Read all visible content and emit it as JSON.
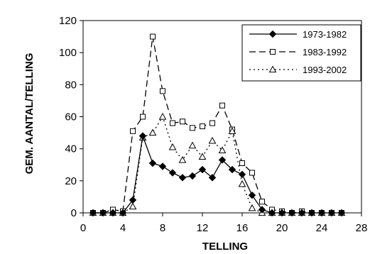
{
  "chart_data": {
    "type": "line",
    "title": "",
    "xlabel": "TELLING",
    "ylabel": "GEM. AANTAL/TELLING",
    "xlim": [
      0,
      28
    ],
    "ylim": [
      0,
      120
    ],
    "x_ticks": [
      0,
      4,
      8,
      12,
      16,
      20,
      24,
      28
    ],
    "y_ticks": [
      0,
      20,
      40,
      60,
      80,
      100,
      120
    ],
    "x_tick_labels": [
      "0",
      "4",
      "8",
      "12",
      "16",
      "20",
      "24",
      "28"
    ],
    "y_tick_labels": [
      "0",
      "20",
      "40",
      "60",
      "80",
      "100",
      "120"
    ],
    "grid": false,
    "legend_position": "top-right",
    "x": [
      1,
      2,
      3,
      4,
      5,
      6,
      7,
      8,
      9,
      10,
      11,
      12,
      13,
      14,
      15,
      16,
      17,
      18,
      19,
      20,
      21,
      22,
      23,
      24,
      25,
      26
    ],
    "series": [
      {
        "name": "1973-1982",
        "line_style": "solid",
        "marker": "filled-diamond",
        "values": [
          0,
          0,
          0,
          0,
          8,
          48,
          31,
          29,
          25,
          22,
          23,
          27,
          22,
          33,
          27,
          24,
          11,
          2,
          0,
          0,
          0,
          0,
          0,
          0,
          0,
          0
        ]
      },
      {
        "name": "1983-1992",
        "line_style": "dashed",
        "marker": "open-square",
        "values": [
          0,
          0,
          2,
          1,
          51,
          60,
          110,
          76,
          56,
          57,
          53,
          54,
          56,
          67,
          52,
          31,
          25,
          7,
          2,
          1,
          0,
          1,
          0,
          0,
          0,
          0
        ]
      },
      {
        "name": "1993-2002",
        "line_style": "dotted",
        "marker": "open-triangle",
        "values": [
          0,
          0,
          0,
          0,
          4,
          47,
          50,
          60,
          41,
          33,
          42,
          35,
          45,
          39,
          51,
          18,
          3,
          0,
          0,
          0,
          0,
          0,
          0,
          0,
          0,
          0
        ]
      }
    ]
  }
}
